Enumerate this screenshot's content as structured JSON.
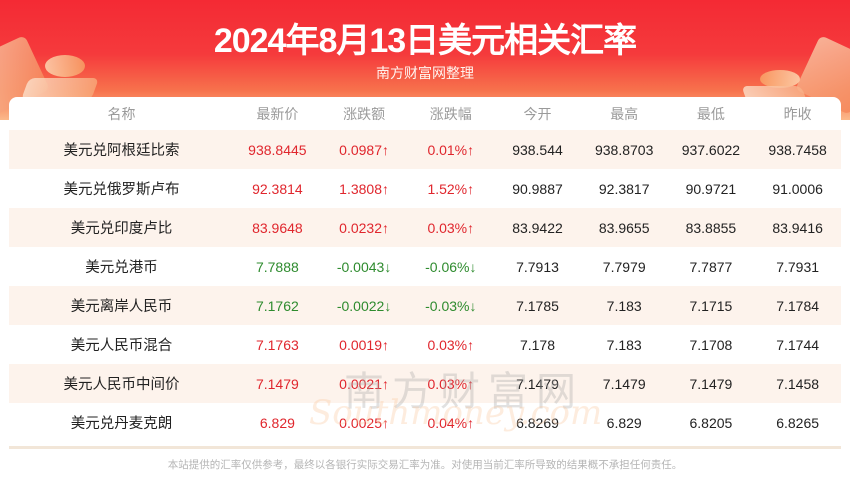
{
  "header": {
    "title": "2024年8月13日美元相关汇率",
    "subtitle": "南方财富网整理"
  },
  "watermark": {
    "cn": "南方财富网",
    "en": "Southmoney.com"
  },
  "colors": {
    "banner_red": "#f42a34",
    "up": "#e0262d",
    "down": "#2e8b2e",
    "stripe": "#fdf3ec"
  },
  "table": {
    "columns": [
      "名称",
      "最新价",
      "涨跌额",
      "涨跌幅",
      "今开",
      "最高",
      "最低",
      "昨收"
    ],
    "rows": [
      {
        "name": "美元兑阿根廷比索",
        "latest": "938.8445",
        "change": "0.0987↑",
        "change_pct": "0.01%↑",
        "open": "938.544",
        "high": "938.8703",
        "low": "937.6022",
        "prev_close": "938.7458",
        "trend": "up"
      },
      {
        "name": "美元兑俄罗斯卢布",
        "latest": "92.3814",
        "change": "1.3808↑",
        "change_pct": "1.52%↑",
        "open": "90.9887",
        "high": "92.3817",
        "low": "90.9721",
        "prev_close": "91.0006",
        "trend": "up"
      },
      {
        "name": "美元兑印度卢比",
        "latest": "83.9648",
        "change": "0.0232↑",
        "change_pct": "0.03%↑",
        "open": "83.9422",
        "high": "83.9655",
        "low": "83.8855",
        "prev_close": "83.9416",
        "trend": "up"
      },
      {
        "name": "美元兑港币",
        "latest": "7.7888",
        "change": "-0.0043↓",
        "change_pct": "-0.06%↓",
        "open": "7.7913",
        "high": "7.7979",
        "low": "7.7877",
        "prev_close": "7.7931",
        "trend": "down"
      },
      {
        "name": "美元离岸人民币",
        "latest": "7.1762",
        "change": "-0.0022↓",
        "change_pct": "-0.03%↓",
        "open": "7.1785",
        "high": "7.183",
        "low": "7.1715",
        "prev_close": "7.1784",
        "trend": "down"
      },
      {
        "name": "美元人民币混合",
        "latest": "7.1763",
        "change": "0.0019↑",
        "change_pct": "0.03%↑",
        "open": "7.178",
        "high": "7.183",
        "low": "7.1708",
        "prev_close": "7.1744",
        "trend": "up"
      },
      {
        "name": "美元人民币中间价",
        "latest": "7.1479",
        "change": "0.0021↑",
        "change_pct": "0.03%↑",
        "open": "7.1479",
        "high": "7.1479",
        "low": "7.1479",
        "prev_close": "7.1458",
        "trend": "up"
      },
      {
        "name": "美元兑丹麦克朗",
        "latest": "6.829",
        "change": "0.0025↑",
        "change_pct": "0.04%↑",
        "open": "6.8269",
        "high": "6.829",
        "low": "6.8205",
        "prev_close": "6.8265",
        "trend": "up"
      }
    ]
  },
  "footer": {
    "disclaimer": "本站提供的汇率仅供参考，最终以各银行实际交易汇率为准。对使用当前汇率所导致的结果概不承担任何责任。"
  }
}
